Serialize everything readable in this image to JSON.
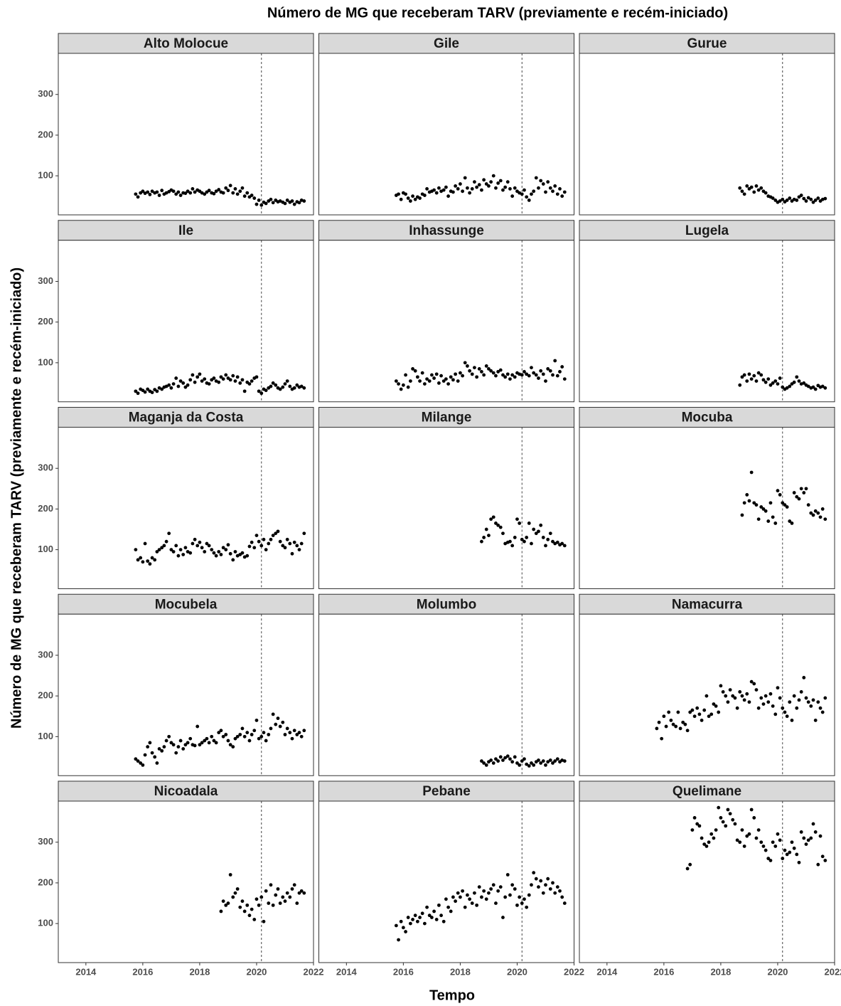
{
  "chart_data": {
    "type": "scatter",
    "title": "Número de MG que receberam TARV (previamente e recém-iniciado)",
    "x_label": "Tempo",
    "y_label": "Número de MG que receberam TARV (previamente e recém-iniciado)",
    "xlim": [
      2013.03,
      2022.0
    ],
    "ylim": [
      4,
      401
    ],
    "xticks": [
      2014,
      2016,
      2018,
      2020,
      2022
    ],
    "yticks": [
      100,
      200,
      300
    ],
    "reference_x": 2020.17,
    "color": "#000000",
    "facet_columns": 3,
    "x": [
      2015.75,
      2015.83,
      2015.92,
      2016.0,
      2016.08,
      2016.17,
      2016.25,
      2016.33,
      2016.42,
      2016.5,
      2016.58,
      2016.67,
      2016.75,
      2016.83,
      2016.92,
      2017.0,
      2017.08,
      2017.17,
      2017.25,
      2017.33,
      2017.42,
      2017.5,
      2017.58,
      2017.67,
      2017.75,
      2017.83,
      2017.92,
      2018.0,
      2018.08,
      2018.17,
      2018.25,
      2018.33,
      2018.42,
      2018.5,
      2018.58,
      2018.67,
      2018.75,
      2018.83,
      2018.92,
      2019.0,
      2019.08,
      2019.17,
      2019.25,
      2019.33,
      2019.42,
      2019.5,
      2019.58,
      2019.67,
      2019.75,
      2019.83,
      2019.92,
      2020.0,
      2020.08,
      2020.17,
      2020.25,
      2020.33,
      2020.42,
      2020.5,
      2020.58,
      2020.67,
      2020.75,
      2020.83,
      2020.92,
      2021.0,
      2021.08,
      2021.17,
      2021.25,
      2021.33,
      2021.42,
      2021.5,
      2021.58,
      2021.67
    ],
    "series": [
      {
        "name": "Alto Molocue",
        "values": [
          55,
          48,
          58,
          62,
          57,
          60,
          54,
          62,
          58,
          60,
          52,
          64,
          55,
          58,
          61,
          65,
          62,
          55,
          60,
          52,
          58,
          57,
          62,
          58,
          68,
          60,
          65,
          62,
          58,
          55,
          60,
          64,
          58,
          56,
          62,
          66,
          60,
          58,
          70,
          64,
          76,
          58,
          68,
          55,
          62,
          70,
          50,
          58,
          48,
          52,
          45,
          30,
          40,
          28,
          35,
          32,
          38,
          42,
          34,
          40,
          36,
          38,
          35,
          32,
          40,
          35,
          38,
          30,
          36,
          34,
          40,
          38
        ]
      },
      {
        "name": "Gile",
        "values": [
          52,
          55,
          42,
          58,
          55,
          45,
          38,
          50,
          42,
          48,
          45,
          55,
          52,
          68,
          60,
          62,
          65,
          58,
          70,
          62,
          65,
          72,
          50,
          62,
          60,
          75,
          68,
          80,
          62,
          95,
          70,
          58,
          68,
          85,
          72,
          78,
          65,
          90,
          80,
          75,
          85,
          100,
          70,
          82,
          88,
          65,
          72,
          85,
          68,
          50,
          70,
          62,
          58,
          55,
          65,
          48,
          40,
          55,
          62,
          95,
          70,
          88,
          80,
          60,
          85,
          70,
          62,
          75,
          55,
          68,
          50,
          60
        ]
      },
      {
        "name": "Gurue",
        "values": [
          null,
          null,
          null,
          null,
          null,
          null,
          null,
          null,
          null,
          null,
          null,
          null,
          null,
          null,
          null,
          null,
          null,
          null,
          null,
          null,
          null,
          null,
          null,
          null,
          null,
          null,
          null,
          null,
          null,
          null,
          null,
          null,
          null,
          null,
          null,
          70,
          62,
          55,
          75,
          68,
          72,
          60,
          75,
          65,
          70,
          62,
          58,
          50,
          48,
          45,
          40,
          35,
          38,
          42,
          36,
          40,
          45,
          38,
          42,
          40,
          48,
          52,
          44,
          38,
          46,
          42,
          35,
          40,
          45,
          38,
          42,
          44
        ]
      },
      {
        "name": "Ile",
        "values": [
          30,
          25,
          35,
          32,
          28,
          35,
          30,
          27,
          34,
          30,
          38,
          35,
          40,
          42,
          45,
          38,
          48,
          62,
          42,
          55,
          50,
          40,
          45,
          58,
          70,
          52,
          65,
          72,
          55,
          60,
          50,
          48,
          58,
          62,
          55,
          52,
          65,
          60,
          70,
          62,
          58,
          68,
          55,
          65,
          50,
          58,
          30,
          52,
          48,
          55,
          62,
          65,
          30,
          25,
          35,
          32,
          38,
          42,
          50,
          45,
          38,
          35,
          40,
          48,
          55,
          42,
          35,
          38,
          45,
          40,
          42,
          38
        ]
      },
      {
        "name": "Inhassunge",
        "values": [
          55,
          48,
          35,
          45,
          70,
          40,
          55,
          85,
          80,
          65,
          55,
          75,
          48,
          60,
          55,
          70,
          62,
          72,
          50,
          68,
          55,
          60,
          48,
          65,
          58,
          72,
          55,
          75,
          68,
          100,
          92,
          80,
          72,
          88,
          65,
          85,
          78,
          70,
          92,
          85,
          80,
          75,
          68,
          78,
          82,
          70,
          65,
          72,
          60,
          70,
          65,
          75,
          72,
          70,
          78,
          72,
          68,
          88,
          75,
          70,
          62,
          80,
          72,
          55,
          85,
          80,
          70,
          105,
          68,
          78,
          90,
          60
        ]
      },
      {
        "name": "Lugela",
        "values": [
          null,
          null,
          null,
          null,
          null,
          null,
          null,
          null,
          null,
          null,
          null,
          null,
          null,
          null,
          null,
          null,
          null,
          null,
          null,
          null,
          null,
          null,
          null,
          null,
          null,
          null,
          null,
          null,
          null,
          null,
          null,
          null,
          null,
          null,
          null,
          45,
          65,
          70,
          55,
          72,
          60,
          68,
          55,
          75,
          70,
          58,
          52,
          60,
          45,
          50,
          55,
          48,
          62,
          40,
          35,
          38,
          42,
          48,
          52,
          65,
          55,
          48,
          50,
          45,
          42,
          38,
          40,
          35,
          44,
          40,
          42,
          38
        ]
      },
      {
        "name": "Maganja da Costa",
        "values": [
          100,
          75,
          80,
          70,
          115,
          72,
          65,
          80,
          75,
          95,
          100,
          105,
          110,
          120,
          140,
          100,
          95,
          110,
          85,
          100,
          88,
          105,
          95,
          92,
          115,
          125,
          110,
          118,
          105,
          95,
          115,
          110,
          100,
          92,
          85,
          95,
          88,
          105,
          100,
          112,
          90,
          75,
          95,
          85,
          88,
          92,
          82,
          85,
          108,
          118,
          105,
          135,
          120,
          110,
          125,
          100,
          115,
          125,
          135,
          140,
          145,
          120,
          110,
          105,
          125,
          115,
          90,
          118,
          110,
          100,
          115,
          140
        ]
      },
      {
        "name": "Milange",
        "values": [
          null,
          null,
          null,
          null,
          null,
          null,
          null,
          null,
          null,
          null,
          null,
          null,
          null,
          null,
          null,
          null,
          null,
          null,
          null,
          null,
          null,
          null,
          null,
          null,
          null,
          null,
          null,
          null,
          null,
          null,
          null,
          null,
          null,
          null,
          null,
          null,
          120,
          130,
          150,
          135,
          175,
          180,
          165,
          160,
          155,
          140,
          115,
          118,
          120,
          110,
          130,
          175,
          165,
          125,
          120,
          130,
          165,
          115,
          150,
          140,
          145,
          160,
          130,
          110,
          125,
          140,
          120,
          115,
          118,
          112,
          115,
          110
        ]
      },
      {
        "name": "Mocuba",
        "values": [
          null,
          null,
          null,
          null,
          null,
          null,
          null,
          null,
          null,
          null,
          null,
          null,
          null,
          null,
          null,
          null,
          null,
          null,
          null,
          null,
          null,
          null,
          null,
          null,
          null,
          null,
          null,
          null,
          null,
          null,
          null,
          null,
          null,
          null,
          null,
          null,
          185,
          215,
          235,
          220,
          290,
          215,
          210,
          175,
          205,
          200,
          195,
          170,
          215,
          180,
          165,
          245,
          235,
          215,
          210,
          205,
          170,
          165,
          240,
          230,
          225,
          250,
          240,
          250,
          210,
          190,
          185,
          195,
          190,
          180,
          200,
          175
        ]
      },
      {
        "name": "Mocubela",
        "values": [
          45,
          40,
          35,
          30,
          55,
          75,
          85,
          60,
          50,
          35,
          70,
          65,
          75,
          90,
          100,
          85,
          80,
          60,
          75,
          90,
          70,
          80,
          85,
          95,
          80,
          78,
          125,
          80,
          85,
          90,
          95,
          85,
          100,
          90,
          85,
          110,
          115,
          100,
          105,
          90,
          80,
          75,
          95,
          100,
          105,
          120,
          100,
          110,
          90,
          105,
          115,
          140,
          95,
          100,
          110,
          90,
          105,
          120,
          155,
          130,
          145,
          125,
          135,
          105,
          120,
          110,
          95,
          115,
          105,
          110,
          100,
          115
        ]
      },
      {
        "name": "Molumbo",
        "values": [
          null,
          null,
          null,
          null,
          null,
          null,
          null,
          null,
          null,
          null,
          null,
          null,
          null,
          null,
          null,
          null,
          null,
          null,
          null,
          null,
          null,
          null,
          null,
          null,
          null,
          null,
          null,
          null,
          null,
          null,
          null,
          null,
          null,
          null,
          null,
          null,
          40,
          35,
          30,
          38,
          42,
          35,
          45,
          40,
          50,
          42,
          48,
          52,
          45,
          38,
          50,
          35,
          30,
          40,
          45,
          32,
          28,
          35,
          30,
          38,
          42,
          35,
          40,
          30,
          38,
          42,
          35,
          40,
          45,
          38,
          42,
          40
        ]
      },
      {
        "name": "Namacurra",
        "values": [
          120,
          135,
          95,
          150,
          125,
          160,
          140,
          130,
          125,
          160,
          120,
          135,
          130,
          115,
          160,
          165,
          150,
          170,
          155,
          140,
          165,
          200,
          150,
          155,
          180,
          175,
          160,
          225,
          210,
          200,
          185,
          215,
          200,
          195,
          170,
          210,
          200,
          190,
          205,
          185,
          235,
          230,
          215,
          170,
          195,
          180,
          200,
          185,
          205,
          175,
          155,
          220,
          195,
          170,
          160,
          150,
          185,
          140,
          200,
          170,
          190,
          210,
          245,
          195,
          185,
          175,
          190,
          140,
          185,
          170,
          160,
          195
        ]
      },
      {
        "name": "Nicoadala",
        "values": [
          null,
          null,
          null,
          null,
          null,
          null,
          null,
          null,
          null,
          null,
          null,
          null,
          null,
          null,
          null,
          null,
          null,
          null,
          null,
          null,
          null,
          null,
          null,
          null,
          null,
          null,
          null,
          null,
          null,
          null,
          null,
          null,
          null,
          null,
          null,
          null,
          130,
          155,
          145,
          150,
          220,
          165,
          175,
          185,
          140,
          155,
          130,
          145,
          120,
          135,
          110,
          160,
          145,
          165,
          105,
          180,
          150,
          195,
          145,
          170,
          185,
          150,
          165,
          155,
          175,
          165,
          185,
          195,
          150,
          175,
          180,
          175
        ]
      },
      {
        "name": "Pebane",
        "values": [
          95,
          60,
          105,
          90,
          80,
          115,
          100,
          110,
          120,
          105,
          115,
          125,
          100,
          140,
          120,
          115,
          130,
          110,
          145,
          120,
          105,
          160,
          140,
          130,
          165,
          155,
          175,
          165,
          180,
          140,
          170,
          160,
          150,
          175,
          145,
          190,
          165,
          180,
          160,
          175,
          185,
          195,
          150,
          180,
          190,
          115,
          165,
          220,
          170,
          195,
          185,
          145,
          165,
          150,
          160,
          140,
          170,
          195,
          225,
          210,
          190,
          205,
          175,
          195,
          210,
          185,
          200,
          175,
          190,
          180,
          165,
          150
        ]
      },
      {
        "name": "Quelimane",
        "values": [
          null,
          null,
          null,
          null,
          null,
          null,
          null,
          null,
          null,
          null,
          null,
          null,
          null,
          235,
          245,
          330,
          360,
          345,
          340,
          310,
          295,
          290,
          300,
          320,
          310,
          330,
          385,
          360,
          350,
          340,
          380,
          370,
          355,
          345,
          305,
          300,
          330,
          290,
          315,
          320,
          380,
          360,
          310,
          330,
          300,
          290,
          280,
          260,
          255,
          300,
          290,
          320,
          305,
          260,
          280,
          270,
          275,
          300,
          285,
          270,
          250,
          325,
          310,
          295,
          305,
          310,
          345,
          325,
          245,
          315,
          265,
          255
        ]
      }
    ]
  }
}
